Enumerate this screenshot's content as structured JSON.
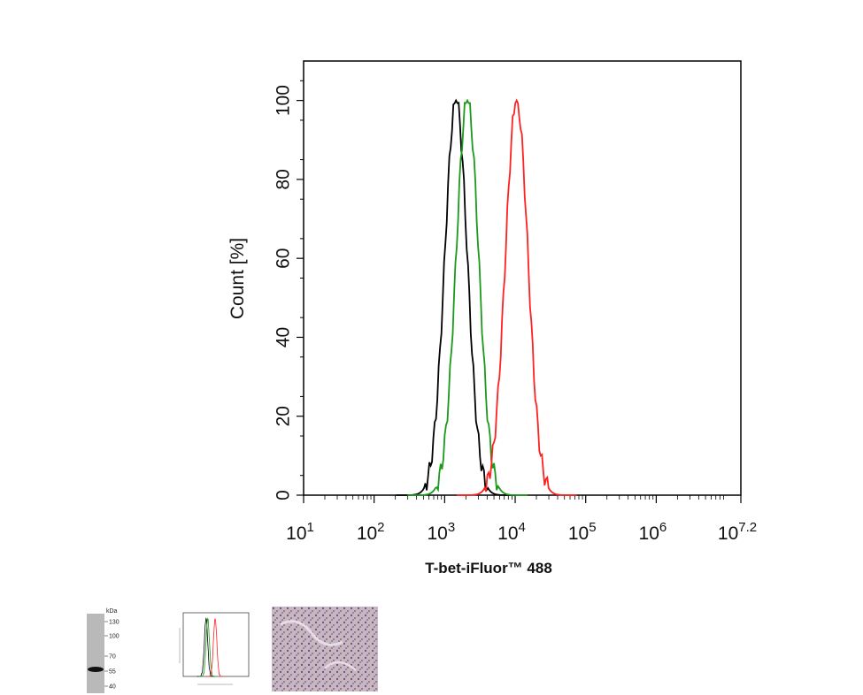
{
  "chart_data": {
    "type": "line",
    "xlabel": "T-bet-iFluor™ 488",
    "ylabel": "Count [%]",
    "xscale": "log",
    "xlim": [
      10,
      15848931.9
    ],
    "ylim": [
      0,
      110
    ],
    "yticks": [
      0,
      20,
      40,
      60,
      80,
      100
    ],
    "xticks": [
      {
        "value": 10,
        "base": "10",
        "exp": "1"
      },
      {
        "value": 100,
        "base": "10",
        "exp": "2"
      },
      {
        "value": 1000,
        "base": "10",
        "exp": "3"
      },
      {
        "value": 10000,
        "base": "10",
        "exp": "4"
      },
      {
        "value": 100000,
        "base": "10",
        "exp": "5"
      },
      {
        "value": 1000000,
        "base": "10",
        "exp": "6"
      },
      {
        "value": 15848931.9,
        "base": "10",
        "exp": "7.2"
      }
    ],
    "grid": false,
    "series": [
      {
        "color": "#000000",
        "peak_x": 1450,
        "peak_y": 100
      },
      {
        "color": "#1a9a1a",
        "peak_x": 2100,
        "peak_y": 100
      },
      {
        "color": "#ff2020",
        "peak_x": 10500,
        "peak_y": 100
      }
    ]
  },
  "thumbnails": {
    "western_blot": {
      "unit": "kDa",
      "markers": [
        "130",
        "100",
        "70",
        "55",
        "40"
      ]
    }
  }
}
